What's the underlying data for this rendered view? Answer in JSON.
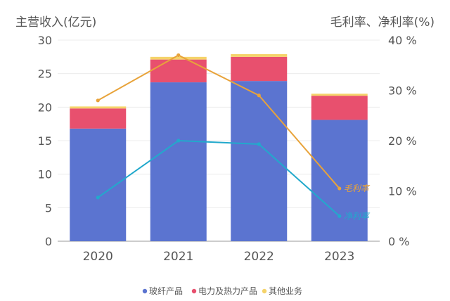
{
  "chart_data": {
    "type": "bar",
    "categories": [
      "2020",
      "2021",
      "2022",
      "2023"
    ],
    "series": [
      {
        "name": "玻纤产品",
        "type": "bar",
        "axis": "left",
        "color": "#5b74d0",
        "values": [
          16.8,
          23.7,
          23.9,
          18.1
        ]
      },
      {
        "name": "电力及热力产品",
        "type": "bar",
        "axis": "left",
        "color": "#e8506e",
        "values": [
          3.0,
          3.4,
          3.6,
          3.6
        ]
      },
      {
        "name": "其他业务",
        "type": "bar",
        "axis": "left",
        "color": "#f5d36a",
        "values": [
          0.3,
          0.4,
          0.4,
          0.3
        ]
      },
      {
        "name": "毛利率",
        "type": "line",
        "axis": "right",
        "color": "#e8a33a",
        "values": [
          28,
          37,
          29,
          10.5
        ]
      },
      {
        "name": "净利率",
        "type": "line",
        "axis": "right",
        "color": "#22a9cc",
        "values": [
          8.7,
          20,
          19.3,
          5
        ]
      }
    ],
    "left_axis": {
      "label": "主营收入(亿元)",
      "ylim": [
        0,
        30
      ],
      "ticks": [
        "0",
        "5",
        "10",
        "15",
        "20",
        "25",
        "30"
      ]
    },
    "right_axis": {
      "label": "毛利率、净利率(%)",
      "ylim": [
        0,
        40
      ],
      "ticks": [
        "0 %",
        "10 %",
        "20 %",
        "30 %",
        "40 %"
      ]
    },
    "legend": {
      "position": "bottom",
      "items": [
        "玻纤产品",
        "电力及热力产品",
        "其他业务"
      ]
    },
    "line_labels": [
      "毛利率",
      "净利率"
    ],
    "grid": true
  }
}
